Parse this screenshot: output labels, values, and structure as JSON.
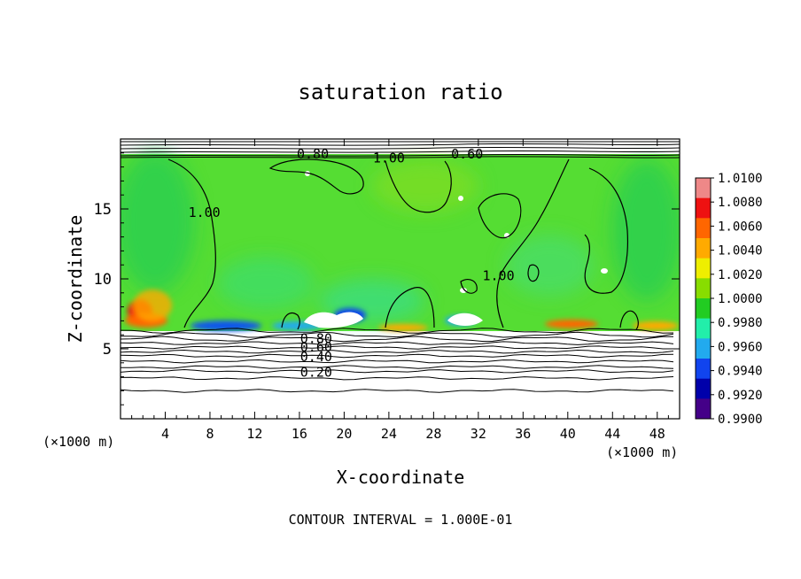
{
  "chart_data": {
    "type": "heatmap",
    "title": "saturation ratio",
    "xlabel": "X-coordinate",
    "ylabel": "Z-coordinate",
    "x_unit_left": "(×1000 m)",
    "x_unit_right": "(×1000 m)",
    "footer": "CONTOUR INTERVAL = 1.000E-01",
    "xlim": [
      0,
      50
    ],
    "ylim": [
      0,
      20
    ],
    "x_ticks": [
      4,
      8,
      12,
      16,
      20,
      24,
      28,
      32,
      36,
      40,
      44,
      48
    ],
    "y_ticks": [
      5,
      10,
      15
    ],
    "colorbar": {
      "min": 0.99,
      "max": 1.01,
      "labels": [
        "1.0100",
        "1.0080",
        "1.0060",
        "1.0040",
        "1.0020",
        "1.0000",
        "0.9980",
        "0.9960",
        "0.9940",
        "0.9920",
        "0.9900"
      ],
      "colors": [
        "#ee8888",
        "#ee1111",
        "#ff6600",
        "#ffaa00",
        "#eeee00",
        "#88dd00",
        "#22cc22",
        "#22eeaa",
        "#22aaee",
        "#1144ee",
        "#0000aa",
        "#440088"
      ]
    },
    "field_base_color": "#55dd33",
    "contour_labels": [
      {
        "text": "0.80",
        "x": 17.2,
        "z": 19.0
      },
      {
        "text": "1.00",
        "x": 24.0,
        "z": 18.7
      },
      {
        "text": "0.60",
        "x": 31.0,
        "z": 19.0
      },
      {
        "text": "1.00",
        "x": 7.5,
        "z": 14.8
      },
      {
        "text": "1.00",
        "x": 33.8,
        "z": 10.3
      },
      {
        "text": "0.80",
        "x": 17.5,
        "z": 5.8
      },
      {
        "text": "0.60",
        "x": 17.5,
        "z": 5.2
      },
      {
        "text": "0.40",
        "x": 17.5,
        "z": 4.5
      },
      {
        "text": "0.20",
        "x": 17.5,
        "z": 3.4
      }
    ],
    "lower_contour_levels_z": [
      6.3,
      6.0,
      5.7,
      5.4,
      5.1,
      4.8,
      4.5,
      4.1,
      3.7,
      3.4,
      2.9,
      2.0
    ]
  }
}
